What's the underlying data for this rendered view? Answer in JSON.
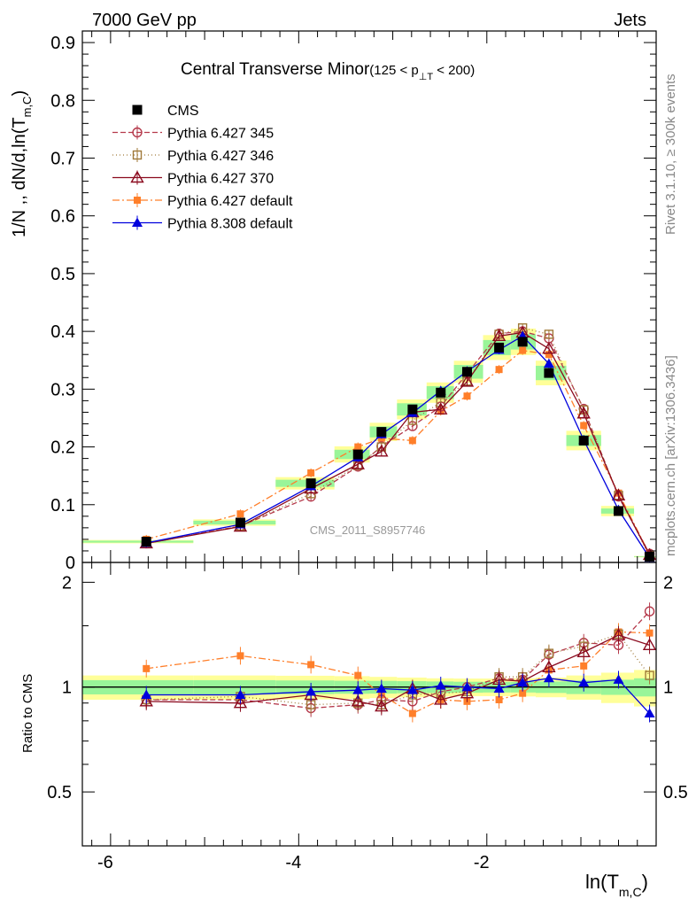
{
  "header": {
    "left": "7000 GeV pp",
    "right": "Jets"
  },
  "side": {
    "rivet": "Rivet 3.1.10, ≥ 300k events",
    "mcplots": "mcplots.cern.ch [arXiv:1306.3436]"
  },
  "chart_data": {
    "type": "line",
    "title": "Central Transverse Minor",
    "title_range": "(125 < p",
    "title_range_sub": "⊥T",
    "title_range_end": " < 200)",
    "ylabel_main": "1/N ,, dN/d,ln(T",
    "ylabel_sub": "m,C",
    "ylabel_close": ")",
    "xlabel_main": "ln(T",
    "xlabel_sub": "m,C",
    "xlabel_close": ")",
    "ratio_ylabel": "Ratio to CMS",
    "watermark": "CMS_2011_S8957746",
    "xlim": [
      -6.3,
      -0.2
    ],
    "ylim": [
      0,
      0.92
    ],
    "ratio_ylim": [
      0.35,
      2.28
    ],
    "x_ticks": [
      "-6",
      "-4",
      "-2"
    ],
    "x_tick_values": [
      -6,
      -4,
      -2
    ],
    "y_ticks": [
      "0",
      "0.1",
      "0.2",
      "0.3",
      "0.4",
      "0.5",
      "0.6",
      "0.7",
      "0.8",
      "0.9"
    ],
    "y_tick_values": [
      0,
      0.1,
      0.2,
      0.3,
      0.4,
      0.5,
      0.6,
      0.7,
      0.8,
      0.9
    ],
    "ratio_ticks": [
      "0.5",
      "1",
      "2"
    ],
    "ratio_tick_values": [
      0.5,
      1,
      2
    ],
    "legend_position": "top-left",
    "x": [
      -5.62,
      -4.62,
      -3.87,
      -3.37,
      -3.12,
      -2.79,
      -2.49,
      -2.21,
      -1.87,
      -1.62,
      -1.34,
      -0.97,
      -0.6,
      -0.27
    ],
    "band_inner": [
      0.047,
      0.047,
      0.045,
      0.043,
      0.042,
      0.04,
      0.038,
      0.036,
      0.035,
      0.035,
      0.038,
      0.045,
      0.05,
      0.06
    ],
    "band_outer": [
      0.08,
      0.08,
      0.078,
      0.075,
      0.07,
      0.065,
      0.06,
      0.058,
      0.058,
      0.06,
      0.065,
      0.08,
      0.1,
      0.12
    ],
    "series": [
      {
        "name": "CMS",
        "color": "#000000",
        "marker": "square-filled",
        "dash": "none",
        "values": [
          0.036,
          0.069,
          0.137,
          0.187,
          0.226,
          0.265,
          0.294,
          0.33,
          0.372,
          0.382,
          0.328,
          0.211,
          0.089,
          0.01
        ],
        "ratio": [
          1,
          1,
          1,
          1,
          1,
          1,
          1,
          1,
          1,
          1,
          1,
          1,
          1,
          1
        ]
      },
      {
        "name": "Pythia 6.427 345",
        "color": "#b5394b",
        "marker": "circle-open",
        "dash": "6,3",
        "values": [
          0.033,
          0.063,
          0.114,
          0.166,
          0.201,
          0.236,
          0.27,
          0.327,
          0.396,
          0.4,
          0.388,
          0.266,
          0.114,
          0.015
        ],
        "ratio": [
          0.92,
          0.92,
          0.87,
          0.89,
          0.92,
          0.91,
          0.97,
          1.0,
          1.06,
          1.05,
          1.24,
          1.34,
          1.32,
          1.65
        ]
      },
      {
        "name": "Pythia 6.427 346",
        "color": "#a07a3a",
        "marker": "square-open",
        "dash": "1,3",
        "values": [
          0.033,
          0.063,
          0.119,
          0.168,
          0.2,
          0.246,
          0.277,
          0.314,
          0.395,
          0.406,
          0.395,
          0.264,
          0.116,
          0.011
        ],
        "ratio": [
          0.92,
          0.94,
          0.89,
          0.9,
          0.89,
          0.95,
          0.96,
          0.97,
          1.07,
          1.07,
          1.25,
          1.31,
          1.42,
          1.08
        ]
      },
      {
        "name": "Pythia 6.427 370",
        "color": "#8b0a1e",
        "marker": "triangle-open",
        "dash": "none",
        "values": [
          0.033,
          0.062,
          0.128,
          0.17,
          0.192,
          0.26,
          0.265,
          0.313,
          0.392,
          0.398,
          0.37,
          0.258,
          0.116,
          0.013
        ],
        "ratio": [
          0.91,
          0.9,
          0.95,
          0.91,
          0.88,
          0.99,
          0.92,
          0.96,
          1.05,
          1.04,
          1.14,
          1.26,
          1.41,
          1.32
        ]
      },
      {
        "name": "Pythia 6.427 default",
        "color": "#ff7f2a",
        "marker": "square-filled-small",
        "dash": "8,3,2,3",
        "values": [
          0.04,
          0.084,
          0.155,
          0.2,
          0.215,
          0.211,
          0.262,
          0.288,
          0.334,
          0.367,
          0.36,
          0.237,
          0.12,
          0.014
        ],
        "ratio": [
          1.13,
          1.23,
          1.16,
          1.08,
          0.95,
          0.84,
          0.92,
          0.91,
          0.92,
          0.96,
          1.12,
          1.15,
          1.44,
          1.43
        ]
      },
      {
        "name": "Pythia 8.308 default",
        "color": "#0000dd",
        "marker": "triangle-filled",
        "dash": "none",
        "values": [
          0.034,
          0.066,
          0.132,
          0.182,
          0.222,
          0.259,
          0.297,
          0.331,
          0.368,
          0.392,
          0.344,
          0.212,
          0.091,
          0.008
        ],
        "ratio": [
          0.95,
          0.95,
          0.97,
          0.98,
          0.99,
          0.98,
          1.01,
          1.0,
          0.99,
          1.03,
          1.06,
          1.03,
          1.05,
          0.84
        ]
      }
    ]
  }
}
